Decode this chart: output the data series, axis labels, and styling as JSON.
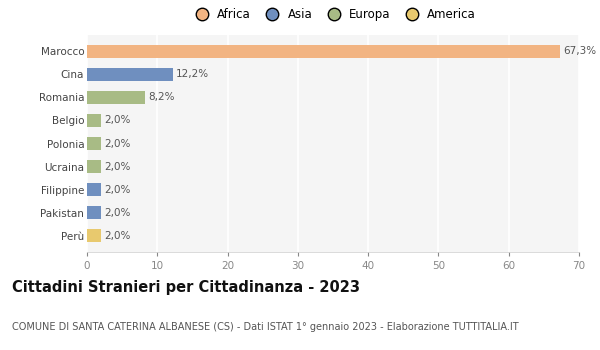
{
  "countries": [
    "Marocco",
    "Cina",
    "Romania",
    "Belgio",
    "Polonia",
    "Ucraina",
    "Filippine",
    "Pakistan",
    "Perù"
  ],
  "values": [
    67.3,
    12.2,
    8.2,
    2.0,
    2.0,
    2.0,
    2.0,
    2.0,
    2.0
  ],
  "labels": [
    "67,3%",
    "12,2%",
    "8,2%",
    "2,0%",
    "2,0%",
    "2,0%",
    "2,0%",
    "2,0%",
    "2,0%"
  ],
  "colors": [
    "#f2b482",
    "#6f8fbf",
    "#a8bb85",
    "#a8bb85",
    "#a8bb85",
    "#a8bb85",
    "#6f8fbf",
    "#6f8fbf",
    "#e8c96e"
  ],
  "legend_labels": [
    "Africa",
    "Asia",
    "Europa",
    "America"
  ],
  "legend_colors": [
    "#f2b482",
    "#6f8fbf",
    "#a8bb85",
    "#e8c96e"
  ],
  "xlim": [
    0,
    70
  ],
  "xticks": [
    0,
    10,
    20,
    30,
    40,
    50,
    60,
    70
  ],
  "title": "Cittadini Stranieri per Cittadinanza - 2023",
  "subtitle": "COMUNE DI SANTA CATERINA ALBANESE (CS) - Dati ISTAT 1° gennaio 2023 - Elaborazione TUTTITALIA.IT",
  "bg_color": "#ffffff",
  "plot_bg_color": "#f5f5f5",
  "grid_color": "#ffffff",
  "bar_height": 0.55,
  "label_fontsize": 7.5,
  "tick_fontsize": 7.5,
  "title_fontsize": 10.5,
  "subtitle_fontsize": 7.0
}
